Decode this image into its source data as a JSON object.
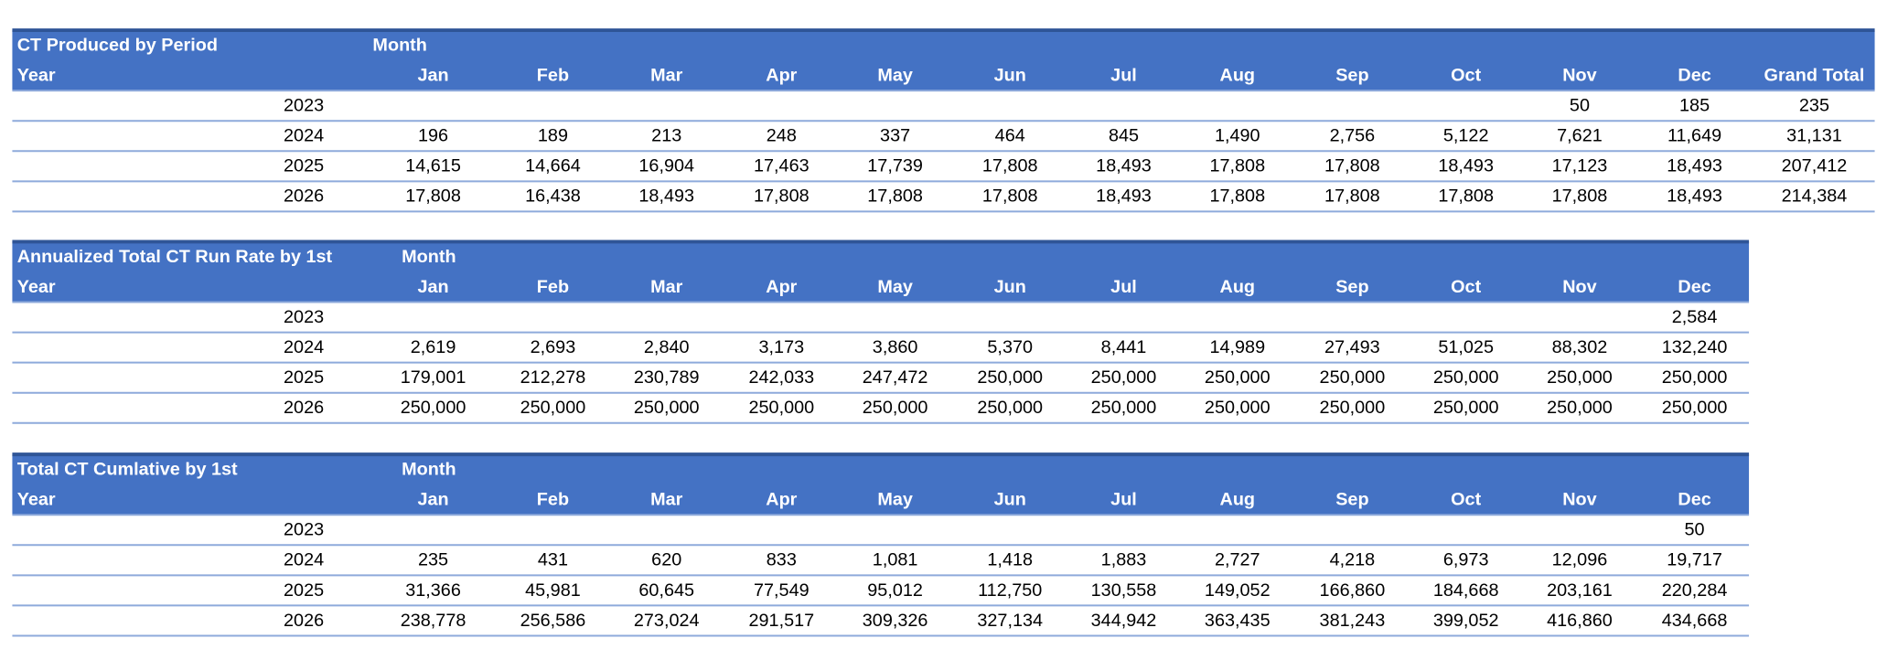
{
  "tables": [
    {
      "title": "CT Produced by Period",
      "column_header": "Month",
      "row_header": "Year",
      "columns": [
        "Jan",
        "Feb",
        "Mar",
        "Apr",
        "May",
        "Jun",
        "Jul",
        "Aug",
        "Sep",
        "Oct",
        "Nov",
        "Dec",
        "Grand Total"
      ],
      "rows": [
        {
          "year": 2023,
          "cells": [
            null,
            null,
            null,
            null,
            null,
            null,
            null,
            null,
            null,
            null,
            "50",
            "185",
            "235"
          ]
        },
        {
          "year": 2024,
          "cells": [
            "196",
            "189",
            "213",
            "248",
            "337",
            "464",
            "845",
            "1,490",
            "2,756",
            "5,122",
            "7,621",
            "11,649",
            "31,131"
          ]
        },
        {
          "year": 2025,
          "cells": [
            "14,615",
            "14,664",
            "16,904",
            "17,463",
            "17,739",
            "17,808",
            "18,493",
            "17,808",
            "17,808",
            "18,493",
            "17,123",
            "18,493",
            "207,412"
          ]
        },
        {
          "year": 2026,
          "cells": [
            "17,808",
            "16,438",
            "18,493",
            "17,808",
            "17,808",
            "17,808",
            "18,493",
            "17,808",
            "17,808",
            "17,808",
            "17,808",
            "18,493",
            "214,384"
          ]
        }
      ]
    },
    {
      "title": "Annualized Total CT Run Rate by 1st",
      "column_header": "Month",
      "row_header": "Year",
      "columns": [
        "Jan",
        "Feb",
        "Mar",
        "Apr",
        "May",
        "Jun",
        "Jul",
        "Aug",
        "Sep",
        "Oct",
        "Nov",
        "Dec"
      ],
      "rows": [
        {
          "year": 2023,
          "cells": [
            null,
            null,
            null,
            null,
            null,
            null,
            null,
            null,
            null,
            null,
            null,
            "2,584"
          ]
        },
        {
          "year": 2024,
          "cells": [
            "2,619",
            "2,693",
            "2,840",
            "3,173",
            "3,860",
            "5,370",
            "8,441",
            "14,989",
            "27,493",
            "51,025",
            "88,302",
            "132,240"
          ]
        },
        {
          "year": 2025,
          "cells": [
            "179,001",
            "212,278",
            "230,789",
            "242,033",
            "247,472",
            "250,000",
            "250,000",
            "250,000",
            "250,000",
            "250,000",
            "250,000",
            "250,000"
          ]
        },
        {
          "year": 2026,
          "cells": [
            "250,000",
            "250,000",
            "250,000",
            "250,000",
            "250,000",
            "250,000",
            "250,000",
            "250,000",
            "250,000",
            "250,000",
            "250,000",
            "250,000"
          ]
        }
      ]
    },
    {
      "title": "Total CT Cumlative by 1st",
      "column_header": "Month",
      "row_header": "Year",
      "columns": [
        "Jan",
        "Feb",
        "Mar",
        "Apr",
        "May",
        "Jun",
        "Jul",
        "Aug",
        "Sep",
        "Oct",
        "Nov",
        "Dec"
      ],
      "rows": [
        {
          "year": 2023,
          "cells": [
            null,
            null,
            null,
            null,
            null,
            null,
            null,
            null,
            null,
            null,
            null,
            "50"
          ]
        },
        {
          "year": 2024,
          "cells": [
            "235",
            "431",
            "620",
            "833",
            "1,081",
            "1,418",
            "1,883",
            "2,727",
            "4,218",
            "6,973",
            "12,096",
            "19,717"
          ]
        },
        {
          "year": 2025,
          "cells": [
            "31,366",
            "45,981",
            "60,645",
            "77,549",
            "95,012",
            "112,750",
            "130,558",
            "149,052",
            "166,860",
            "184,668",
            "203,161",
            "220,284"
          ]
        },
        {
          "year": 2026,
          "cells": [
            "238,778",
            "256,586",
            "273,024",
            "291,517",
            "309,326",
            "327,134",
            "344,942",
            "363,435",
            "381,243",
            "399,052",
            "416,860",
            "434,668"
          ]
        }
      ]
    }
  ]
}
